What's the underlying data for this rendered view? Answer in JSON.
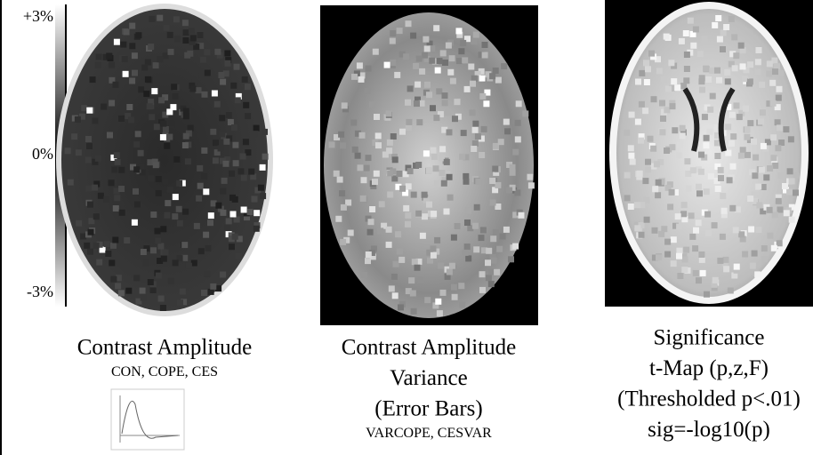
{
  "colorbar": {
    "labels": [
      "+3%",
      "0%",
      "-3%"
    ]
  },
  "panels": [
    {
      "lines": [
        "Contrast Amplitude"
      ],
      "sublines": [
        "CON, COPE, CES"
      ]
    },
    {
      "lines": [
        "Contrast Amplitude",
        "Variance",
        "(Error Bars)"
      ],
      "sublines": [
        "VARCOPE, CESVAR"
      ]
    },
    {
      "lines": [
        "Significance",
        "t-Map (p,z,F)",
        "(Thresholded p<.01)",
        "sig=-log10(p)"
      ],
      "sublines": []
    }
  ]
}
